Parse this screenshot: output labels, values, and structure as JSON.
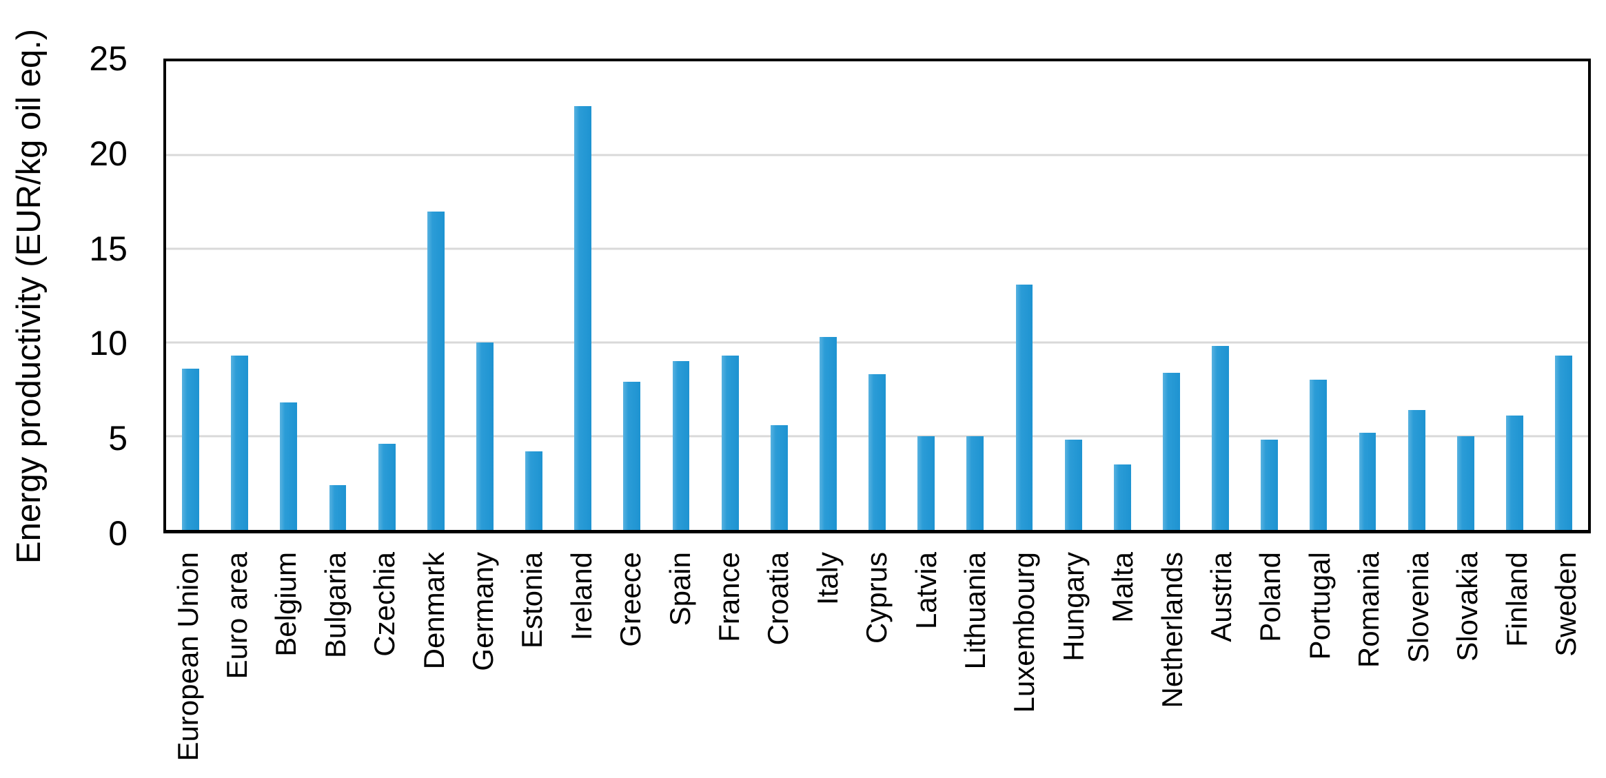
{
  "chart_data": {
    "type": "bar",
    "title": "",
    "xlabel": "",
    "ylabel": "Energy productivity (EUR/kg oil eq.)",
    "ylim": [
      0,
      25
    ],
    "yticks": [
      0,
      5,
      10,
      15,
      20,
      25
    ],
    "grid": true,
    "legend": false,
    "bar_color": "#2196d3",
    "gridline_color": "#d9d9d9",
    "axis_box_color": "#000000",
    "categories": [
      "European Union",
      "Euro area",
      "Belgium",
      "Bulgaria",
      "Czechia",
      "Denmark",
      "Germany",
      "Estonia",
      "Ireland",
      "Greece",
      "Spain",
      "France",
      "Croatia",
      "Italy",
      "Cyprus",
      "Latvia",
      "Lithuania",
      "Luxembourg",
      "Hungary",
      "Malta",
      "Netherlands",
      "Austria",
      "Poland",
      "Portugal",
      "Romania",
      "Slovenia",
      "Slovakia",
      "Finland",
      "Sweden"
    ],
    "values": [
      8.6,
      9.3,
      6.8,
      2.4,
      4.6,
      17.0,
      10.0,
      4.2,
      22.6,
      7.9,
      9.0,
      9.3,
      5.6,
      10.3,
      8.3,
      5.0,
      5.0,
      13.1,
      4.8,
      3.5,
      8.4,
      9.8,
      4.8,
      8.0,
      5.2,
      6.4,
      5.0,
      6.1,
      9.3
    ]
  }
}
